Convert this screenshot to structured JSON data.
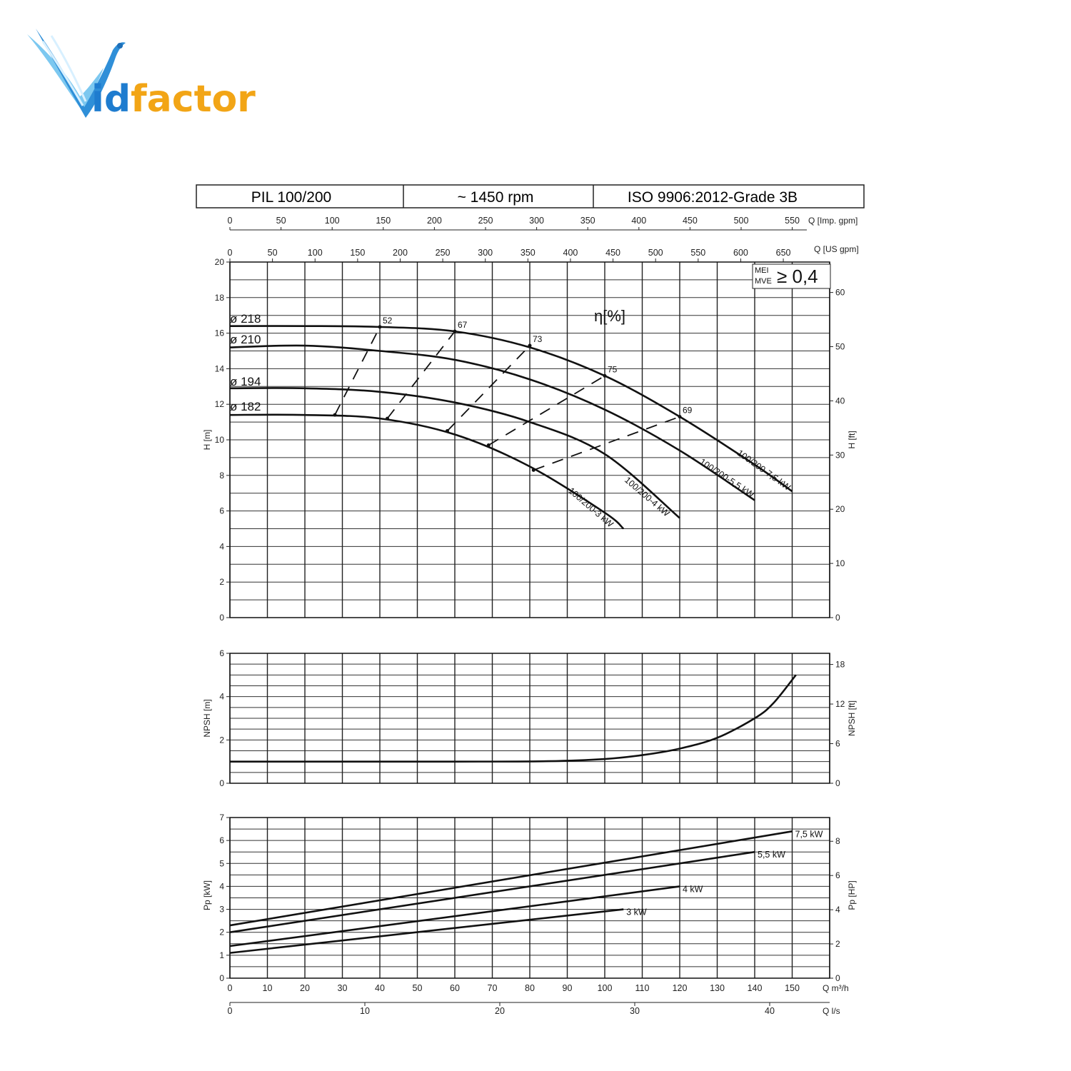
{
  "logo": {
    "text": "Vidfactor",
    "colors": {
      "wing": "#2f8fd8",
      "wing_light": "#8fd0f5",
      "text_blue": "#1e7ccf",
      "text_orange": "#f2a516"
    }
  },
  "header": {
    "model": "PIL 100/200",
    "speed": "~ 1450 rpm",
    "standard": "ISO 9906:2012-Grade 3B"
  },
  "badge": {
    "mei": "MEI",
    "mve": "MVE",
    "value": "≥ 0,4"
  },
  "chart_data": [
    {
      "type": "line",
      "name": "head",
      "ylabel": "H [m]",
      "ylabel_right": "H [ft]",
      "xlim": [
        0,
        160
      ],
      "ylim": [
        0,
        20
      ],
      "yticks": [
        0,
        2,
        4,
        6,
        8,
        10,
        12,
        14,
        16,
        18,
        20
      ],
      "yticks_right": [
        0,
        10,
        20,
        30,
        40,
        50,
        60
      ],
      "top_axis_imp_gpm": {
        "label": "Q [Imp. gpm]",
        "ticks": [
          0,
          50,
          100,
          150,
          200,
          250,
          300,
          350,
          400,
          450,
          500,
          550
        ]
      },
      "top_axis_us_gpm": {
        "label": "Q [US gpm]",
        "ticks": [
          0,
          50,
          100,
          150,
          200,
          250,
          300,
          350,
          400,
          450,
          500,
          550,
          600,
          650
        ]
      },
      "efficiency_label": "η[%]",
      "diameters": [
        "ø 218",
        "ø 210",
        "ø 194",
        "ø 182"
      ],
      "series": [
        {
          "name": "100/200-7,5 kW",
          "x": [
            0,
            20,
            40,
            60,
            80,
            100,
            120,
            140,
            150
          ],
          "y": [
            16.4,
            16.4,
            16.35,
            16.1,
            15.2,
            13.6,
            11.3,
            8.6,
            7.1
          ]
        },
        {
          "name": "100/200-5,5 kW",
          "x": [
            0,
            20,
            40,
            60,
            80,
            100,
            120,
            140
          ],
          "y": [
            15.2,
            15.3,
            15.0,
            14.5,
            13.4,
            11.7,
            9.4,
            6.6
          ]
        },
        {
          "name": "100/200-4 kW",
          "x": [
            0,
            20,
            40,
            60,
            80,
            100,
            120
          ],
          "y": [
            12.9,
            12.9,
            12.7,
            12.1,
            11.0,
            9.2,
            5.6
          ]
        },
        {
          "name": "100/200-3 kW",
          "x": [
            0,
            20,
            40,
            60,
            80,
            100,
            105
          ],
          "y": [
            11.4,
            11.4,
            11.2,
            10.3,
            8.5,
            5.9,
            5.0
          ]
        }
      ],
      "efficiency_lines": [
        {
          "label": "52",
          "x": [
            28,
            40
          ],
          "y": [
            11.4,
            16.35
          ]
        },
        {
          "label": "67",
          "x": [
            42,
            60
          ],
          "y": [
            11.2,
            16.1
          ]
        },
        {
          "label": "73",
          "x": [
            58,
            80
          ],
          "y": [
            10.5,
            15.3
          ]
        },
        {
          "label": "75",
          "x": [
            69,
            100
          ],
          "y": [
            9.7,
            13.6
          ]
        },
        {
          "label": "69",
          "x": [
            81,
            120
          ],
          "y": [
            8.3,
            11.3
          ]
        }
      ]
    },
    {
      "type": "line",
      "name": "npsh",
      "ylabel": "NPSH [m]",
      "ylabel_right": "NPSH [ft]",
      "ylim": [
        0,
        6
      ],
      "yticks": [
        0,
        2,
        4,
        6
      ],
      "yticks_right": [
        0,
        6,
        12,
        18
      ],
      "series": [
        {
          "name": "NPSH",
          "x": [
            0,
            60,
            85,
            100,
            110,
            120,
            130,
            140,
            145,
            151
          ],
          "y": [
            1.0,
            1.0,
            1.02,
            1.12,
            1.3,
            1.6,
            2.1,
            3.0,
            3.7,
            5.0
          ]
        }
      ]
    },
    {
      "type": "line",
      "name": "power",
      "ylabel": "Pp [kW]",
      "ylabel_right": "Pp [HP]",
      "xlabel": "Q m³/h",
      "xlabel_ls": "Q l/s",
      "ylim": [
        0,
        7
      ],
      "yticks": [
        0,
        1,
        2,
        3,
        4,
        5,
        6,
        7
      ],
      "yticks_right": [
        0,
        2,
        4,
        6,
        8
      ],
      "xticks": [
        0,
        10,
        20,
        30,
        40,
        50,
        60,
        70,
        80,
        90,
        100,
        110,
        120,
        130,
        140,
        150
      ],
      "xticks_ls": [
        0,
        10,
        20,
        30,
        40
      ],
      "series": [
        {
          "name": "7,5 kW",
          "x": [
            0,
            150
          ],
          "y": [
            2.3,
            6.4
          ]
        },
        {
          "name": "5,5 kW",
          "x": [
            0,
            140
          ],
          "y": [
            2.0,
            5.5
          ]
        },
        {
          "name": "4 kW",
          "x": [
            0,
            120
          ],
          "y": [
            1.4,
            4.0
          ]
        },
        {
          "name": "3 kW",
          "x": [
            0,
            105
          ],
          "y": [
            1.1,
            3.0
          ]
        }
      ]
    }
  ]
}
